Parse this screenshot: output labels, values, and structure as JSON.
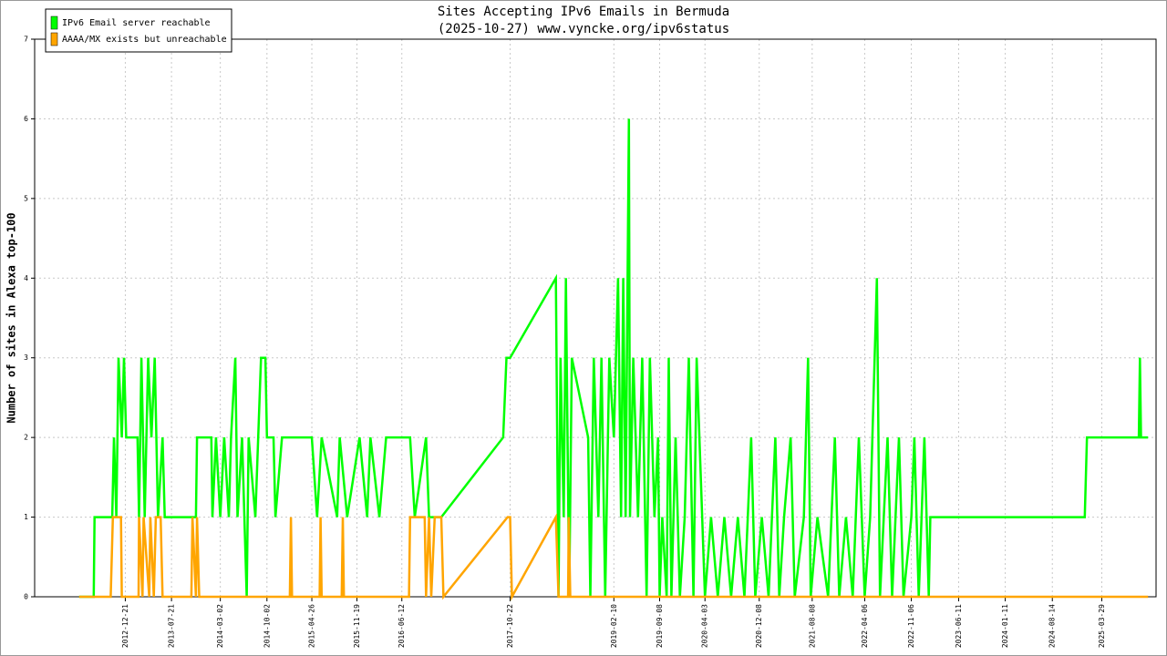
{
  "chart_data": {
    "type": "line",
    "title": "Sites Accepting IPv6 Emails in Bermuda",
    "subtitle": "(2025-10-27) www.vyncke.org/ipv6status",
    "y_label": "Number of sites in Alexa top-100",
    "xlim": [
      "2011-11-01",
      "2025-12-03"
    ],
    "xticks": [
      "2012-12-21",
      "2013-07-21",
      "2014-03-02",
      "2014-10-02",
      "2015-04-26",
      "2015-11-19",
      "2016-06-12",
      "2017-10-22",
      "2019-02-10",
      "2019-09-08",
      "2020-04-03",
      "2020-12-08",
      "2021-08-08",
      "2022-04-06",
      "2022-11-06",
      "2023-06-11",
      "2024-01-11",
      "2024-08-14",
      "2025-03-29"
    ],
    "ylim": [
      0,
      7
    ],
    "yticks": [
      0,
      1,
      2,
      3,
      4,
      5,
      6,
      7
    ],
    "grid": true,
    "legend": "top-left",
    "series": [
      {
        "name": "IPv6 Email server reachable",
        "color": "#00ff00",
        "x": [
          "2012-05-23",
          "2012-07-29",
          "2012-08-02",
          "2012-10-22",
          "2012-10-30",
          "2012-11-10",
          "2012-11-20",
          "2012-12-05",
          "2012-12-15",
          "2012-12-25",
          "2013-02-15",
          "2013-02-22",
          "2013-03-05",
          "2013-03-20",
          "2013-04-05",
          "2013-04-20",
          "2013-05-05",
          "2013-05-20",
          "2013-06-10",
          "2013-06-20",
          "2013-07-21",
          "2013-10-15",
          "2013-11-10",
          "2013-11-15",
          "2014-01-20",
          "2014-01-25",
          "2014-02-10",
          "2014-03-02",
          "2014-03-20",
          "2014-04-10",
          "2014-04-20",
          "2014-05-10",
          "2014-05-20",
          "2014-06-10",
          "2014-07-01",
          "2014-07-10",
          "2014-08-10",
          "2014-09-05",
          "2014-09-25",
          "2014-10-02",
          "2014-11-01",
          "2014-11-10",
          "2014-12-10",
          "2015-03-25",
          "2015-04-26",
          "2015-05-20",
          "2015-06-10",
          "2015-08-20",
          "2015-09-01",
          "2015-10-05",
          "2015-12-01",
          "2016-01-05",
          "2016-01-20",
          "2016-03-01",
          "2016-04-01",
          "2016-07-20",
          "2016-08-10",
          "2016-10-01",
          "2016-10-15",
          "2016-12-10",
          "2017-09-20",
          "2017-10-05",
          "2017-10-22",
          "2018-05-20",
          "2018-06-01",
          "2018-06-10",
          "2018-06-25",
          "2018-07-05",
          "2018-07-20",
          "2018-08-01",
          "2018-10-15",
          "2018-10-25",
          "2018-11-10",
          "2018-12-01",
          "2018-12-15",
          "2019-01-01",
          "2019-01-20",
          "2019-02-10",
          "2019-03-01",
          "2019-03-15",
          "2019-03-25",
          "2019-04-05",
          "2019-04-20",
          "2019-04-25",
          "2019-05-10",
          "2019-06-01",
          "2019-06-20",
          "2019-07-10",
          "2019-07-25",
          "2019-08-15",
          "2019-09-01",
          "2019-09-08",
          "2019-09-20",
          "2019-10-10",
          "2019-10-20",
          "2019-11-01",
          "2019-11-20",
          "2019-12-10",
          "2020-01-01",
          "2020-01-20",
          "2020-02-10",
          "2020-02-25",
          "2020-04-03",
          "2020-05-01",
          "2020-06-01",
          "2020-07-01",
          "2020-08-01",
          "2020-09-01",
          "2020-10-01",
          "2020-11-01",
          "2020-11-20",
          "2020-12-20",
          "2021-01-20",
          "2021-02-20",
          "2021-03-10",
          "2021-04-01",
          "2021-05-01",
          "2021-05-20",
          "2021-07-01",
          "2021-07-20",
          "2021-08-01",
          "2021-09-01",
          "2021-10-20",
          "2021-11-20",
          "2021-12-10",
          "2022-01-10",
          "2022-02-10",
          "2022-03-10",
          "2022-04-06",
          "2022-05-01",
          "2022-06-01",
          "2022-06-15",
          "2022-07-20",
          "2022-08-10",
          "2022-09-10",
          "2022-10-01",
          "2022-11-06",
          "2022-11-20",
          "2022-12-10",
          "2023-01-05",
          "2023-01-25",
          "2023-02-01",
          "2025-01-10",
          "2025-01-20",
          "2025-09-15",
          "2025-09-20",
          "2025-09-25",
          "2025-10-27"
        ],
        "values": [
          0,
          0,
          1,
          1,
          2,
          1,
          3,
          2,
          3,
          2,
          2,
          1,
          3,
          1,
          3,
          2,
          3,
          1,
          2,
          1,
          1,
          1,
          1,
          2,
          2,
          1,
          2,
          1,
          2,
          1,
          2,
          3,
          1,
          2,
          0,
          2,
          1,
          3,
          3,
          2,
          2,
          1,
          2,
          2,
          2,
          1,
          2,
          1,
          2,
          1,
          2,
          1,
          2,
          1,
          2,
          2,
          1,
          2,
          1,
          1,
          2,
          3,
          3,
          4,
          0,
          3,
          1,
          4,
          0,
          3,
          2,
          0,
          3,
          1,
          3,
          0,
          3,
          2,
          4,
          1,
          4,
          1,
          6,
          1,
          3,
          1,
          3,
          0,
          3,
          1,
          2,
          0,
          1,
          0,
          3,
          0,
          2,
          0,
          1,
          3,
          0,
          3,
          0,
          1,
          0,
          1,
          0,
          1,
          0,
          2,
          0,
          1,
          0,
          2,
          0,
          1,
          2,
          0,
          1,
          3,
          0,
          1,
          0,
          2,
          0,
          1,
          0,
          2,
          0,
          1,
          4,
          0,
          2,
          0,
          2,
          0,
          1,
          2,
          0,
          2,
          0,
          1,
          1,
          2,
          2,
          3,
          2,
          2
        ]
      },
      {
        "name": "AAAA/MX exists but unreachable",
        "color": "#ffa500",
        "x": [
          "2012-05-23",
          "2012-10-15",
          "2012-10-25",
          "2012-12-01",
          "2012-12-05",
          "2013-02-20",
          "2013-02-22",
          "2013-03-10",
          "2013-03-15",
          "2013-04-10",
          "2013-04-15",
          "2013-05-01",
          "2013-05-10",
          "2013-06-01",
          "2013-06-10",
          "2013-10-20",
          "2013-10-25",
          "2013-11-10",
          "2013-11-15",
          "2013-11-25",
          "2015-01-15",
          "2015-01-20",
          "2015-01-25",
          "2015-06-01",
          "2015-06-05",
          "2015-06-10",
          "2015-09-10",
          "2015-09-15",
          "2015-09-20",
          "2016-07-15",
          "2016-07-20",
          "2016-09-25",
          "2016-10-01",
          "2016-10-15",
          "2016-10-25",
          "2016-11-10",
          "2016-12-10",
          "2016-12-20",
          "2017-10-10",
          "2017-10-22",
          "2017-10-30",
          "2018-05-20",
          "2018-06-01",
          "2018-07-15",
          "2018-07-18",
          "2018-07-25",
          "2025-10-27"
        ],
        "values": [
          0,
          0,
          1,
          1,
          0,
          0,
          1,
          0,
          1,
          0,
          1,
          0,
          1,
          1,
          0,
          0,
          1,
          0,
          1,
          0,
          0,
          1,
          0,
          0,
          1,
          0,
          0,
          1,
          0,
          0,
          1,
          1,
          0,
          1,
          0,
          1,
          1,
          0,
          1,
          1,
          0,
          1,
          0,
          0,
          1,
          0,
          0
        ]
      }
    ]
  }
}
